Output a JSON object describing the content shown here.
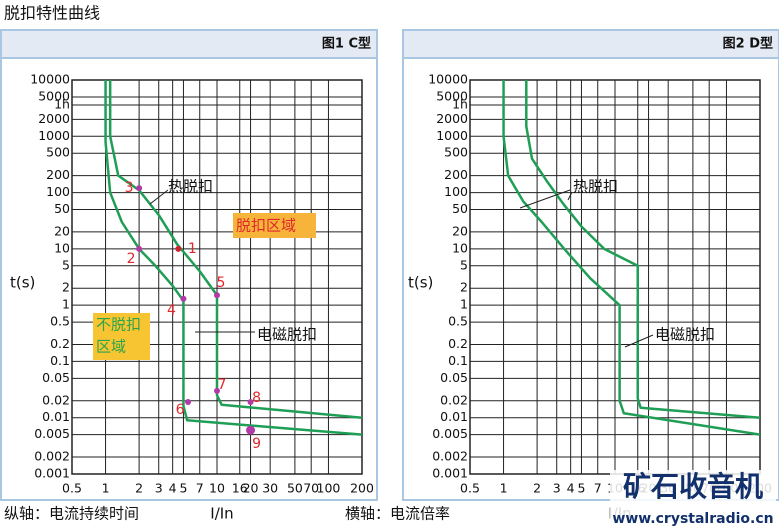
{
  "title": "脱扣特性曲线",
  "chart_data": [
    {
      "type": "line",
      "title": "图1  C型",
      "xlabel": "I/In",
      "ylabel": "t(s)",
      "xscale": "log",
      "yscale": "log",
      "grid": true,
      "xlim": [
        0.5,
        200
      ],
      "ylim": [
        0.001,
        10000
      ],
      "xticks": [
        0.5,
        1,
        2,
        3,
        4,
        5,
        7,
        10,
        16,
        20,
        30,
        50,
        70,
        100,
        200
      ],
      "yticks": [
        10000,
        5000,
        {
          "value": 3600,
          "label": "1h"
        },
        2000,
        1000,
        500,
        200,
        100,
        50,
        20,
        10,
        5,
        2,
        1,
        0.5,
        0.2,
        0.1,
        0.05,
        0.02,
        0.01,
        0.005,
        0.002,
        0.001
      ],
      "series": [
        {
          "color": "#1f9e55",
          "x": [
            1,
            1,
            1.1,
            1.4,
            2,
            2.8,
            4,
            5,
            5,
            5,
            5.4,
            200
          ],
          "values": [
            10000,
            800,
            100,
            30,
            10,
            5,
            2.2,
            1.2,
            0.1,
            0.016,
            0.009,
            0.005
          ]
        },
        {
          "color": "#1f9e55",
          "x": [
            1.1,
            1.1,
            1.3,
            2,
            3,
            4.4,
            7,
            10,
            10,
            10,
            11,
            200
          ],
          "values": [
            10000,
            1000,
            200,
            110,
            40,
            12,
            4,
            1.5,
            0.1,
            0.025,
            0.017,
            0.01
          ]
        }
      ],
      "points": [
        {
          "label": "1",
          "x": 4.5,
          "y": 10,
          "color": "#d0202e"
        },
        {
          "label": "2",
          "x": 2,
          "y": 10,
          "color": "#b23aa8"
        },
        {
          "label": "3",
          "x": 2,
          "y": 120,
          "color": "#b23aa8"
        },
        {
          "label": "4",
          "x": 5,
          "y": 1.3,
          "color": "#b23aa8"
        },
        {
          "label": "5",
          "x": 10,
          "y": 1.5,
          "color": "#b23aa8"
        },
        {
          "label": "6",
          "x": 5.5,
          "y": 0.019,
          "color": "#b23aa8"
        },
        {
          "label": "7",
          "x": 10,
          "y": 0.03,
          "color": "#b23aa8"
        },
        {
          "label": "8",
          "x": 20,
          "y": 0.019,
          "color": "#b23aa8"
        },
        {
          "label": "9",
          "x": 20,
          "y": 0.006,
          "color": "#b23aa8"
        }
      ],
      "annotations": {
        "thermal": "热脱扣",
        "magnetic": "电磁脱扣",
        "trip_zone": "脱扣区域",
        "no_trip_zone": [
          "不脱扣",
          "区域"
        ]
      }
    },
    {
      "type": "line",
      "title": "图2  D型",
      "xlabel": "I/In",
      "ylabel": "t(s)",
      "xscale": "log",
      "yscale": "log",
      "grid": true,
      "xlim": [
        0.5,
        200
      ],
      "ylim": [
        0.001,
        10000
      ],
      "xticks": [
        0.5,
        1,
        2,
        3,
        4,
        5,
        7,
        10,
        16,
        20,
        30,
        50,
        70,
        100,
        200
      ],
      "yticks": [
        10000,
        5000,
        {
          "value": 3600,
          "label": "1h"
        },
        2000,
        1000,
        500,
        200,
        100,
        50,
        20,
        10,
        5,
        2,
        1,
        0.5,
        0.2,
        0.1,
        0.05,
        0.02,
        0.01,
        0.005,
        0.002,
        0.001
      ],
      "series": [
        {
          "color": "#1f9e55",
          "x": [
            1,
            1,
            1.1,
            1.5,
            2.2,
            3.5,
            6,
            11,
            11,
            11,
            12,
            200
          ],
          "values": [
            10000,
            1000,
            200,
            70,
            30,
            10,
            3,
            1,
            0.1,
            0.02,
            0.012,
            0.005
          ]
        },
        {
          "color": "#1f9e55",
          "x": [
            1.6,
            1.6,
            1.8,
            2.5,
            3.5,
            5,
            8,
            16,
            16,
            16,
            17,
            200
          ],
          "values": [
            10000,
            1500,
            400,
            150,
            60,
            25,
            10,
            5,
            0.1,
            0.022,
            0.015,
            0.01
          ]
        }
      ],
      "annotations": {
        "thermal": "热脱扣",
        "magnetic": "电磁脱扣"
      }
    }
  ],
  "footer": {
    "y_note": "纵轴：电流持续时间",
    "x_note": "横轴：电流倍率"
  },
  "watermark": {
    "name": "矿石收音机",
    "url": "www.crystalradio.cn"
  }
}
